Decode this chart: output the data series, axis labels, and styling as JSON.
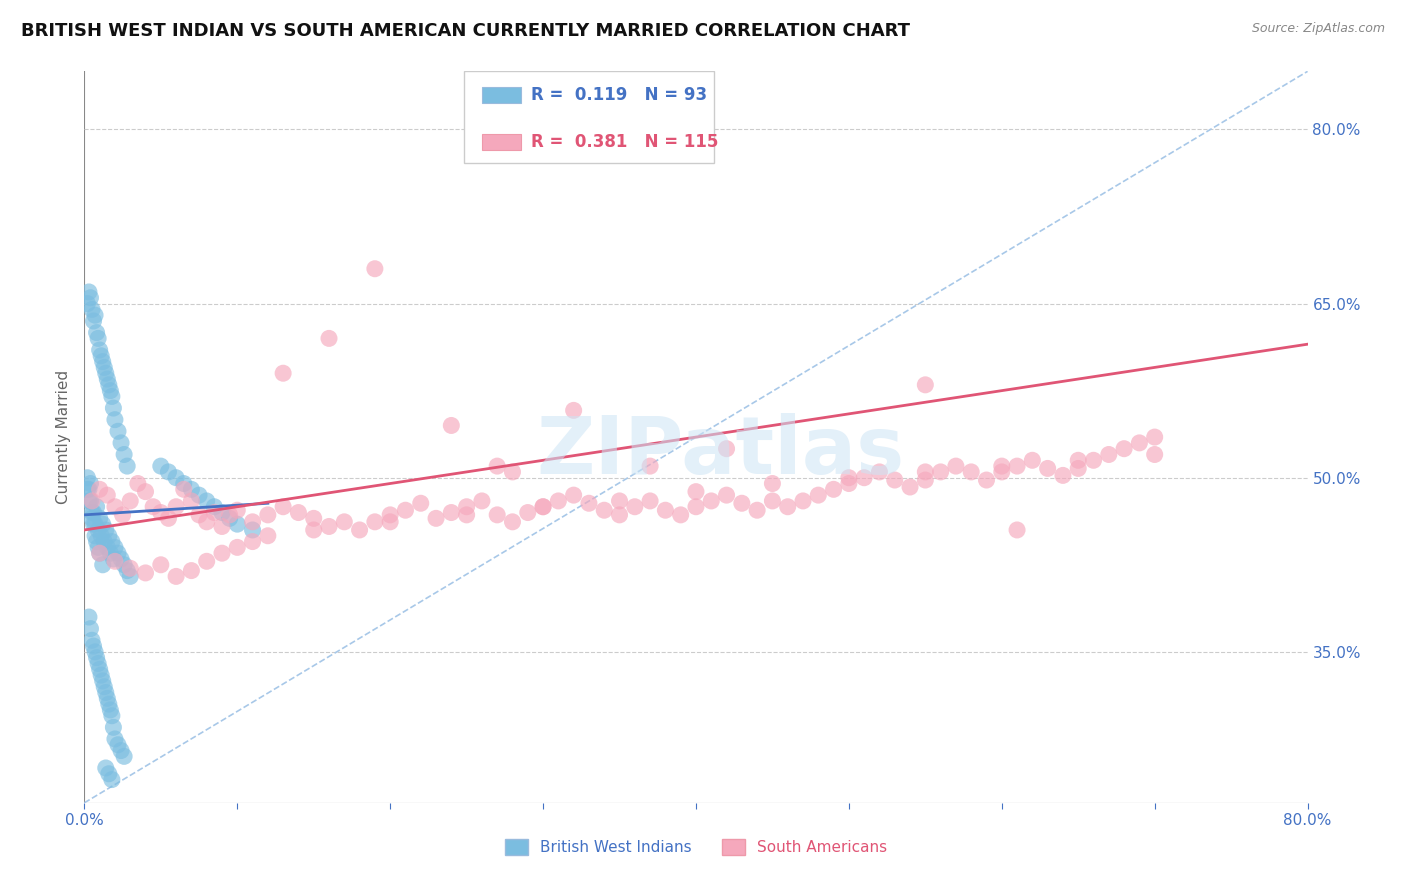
{
  "title": "BRITISH WEST INDIAN VS SOUTH AMERICAN CURRENTLY MARRIED CORRELATION CHART",
  "source_text": "Source: ZipAtlas.com",
  "ylabel": "Currently Married",
  "watermark": "ZIPatlas",
  "xlim": [
    0.0,
    0.8
  ],
  "ylim": [
    0.22,
    0.85
  ],
  "yticks": [
    0.35,
    0.5,
    0.65,
    0.8
  ],
  "ytick_labels": [
    "35.0%",
    "50.0%",
    "65.0%",
    "80.0%"
  ],
  "xticks": [
    0.0,
    0.1,
    0.2,
    0.3,
    0.4,
    0.5,
    0.6,
    0.7,
    0.8
  ],
  "xtick_labels": [
    "0.0%",
    "",
    "",
    "",
    "",
    "",
    "",
    "",
    "80.0%"
  ],
  "blue_R": 0.119,
  "blue_N": 93,
  "pink_R": 0.381,
  "pink_N": 115,
  "blue_color": "#7bbde0",
  "pink_color": "#f5a8bc",
  "blue_line_color": "#4472c4",
  "pink_line_color": "#e05575",
  "axis_color": "#4472c4",
  "title_fontsize": 13,
  "tick_fontsize": 11,
  "legend_fontsize": 13,
  "blue_reg_line": {
    "x0": 0.0,
    "x1": 0.12,
    "y0": 0.468,
    "y1": 0.478
  },
  "pink_reg_line": {
    "x0": 0.0,
    "x1": 0.8,
    "y0": 0.455,
    "y1": 0.615
  },
  "diag_line": {
    "x0": 0.0,
    "x1": 0.8,
    "y0": 0.22,
    "y1": 0.85
  },
  "blue_scatter_x": [
    0.002,
    0.003,
    0.004,
    0.005,
    0.006,
    0.007,
    0.008,
    0.009,
    0.01,
    0.011,
    0.012,
    0.013,
    0.014,
    0.015,
    0.016,
    0.017,
    0.018,
    0.019,
    0.02,
    0.022,
    0.024,
    0.026,
    0.028,
    0.03,
    0.002,
    0.003,
    0.004,
    0.005,
    0.006,
    0.007,
    0.008,
    0.009,
    0.01,
    0.011,
    0.012,
    0.013,
    0.014,
    0.015,
    0.016,
    0.017,
    0.018,
    0.019,
    0.02,
    0.022,
    0.024,
    0.026,
    0.028,
    0.003,
    0.004,
    0.005,
    0.006,
    0.007,
    0.008,
    0.009,
    0.01,
    0.011,
    0.012,
    0.013,
    0.014,
    0.015,
    0.016,
    0.017,
    0.018,
    0.019,
    0.02,
    0.022,
    0.024,
    0.026,
    0.05,
    0.055,
    0.06,
    0.065,
    0.07,
    0.075,
    0.08,
    0.085,
    0.09,
    0.095,
    0.1,
    0.11,
    0.002,
    0.003,
    0.004,
    0.005,
    0.006,
    0.007,
    0.008,
    0.009,
    0.01,
    0.012,
    0.014,
    0.016,
    0.018
  ],
  "blue_scatter_y": [
    0.49,
    0.48,
    0.495,
    0.465,
    0.47,
    0.46,
    0.475,
    0.455,
    0.465,
    0.45,
    0.46,
    0.445,
    0.455,
    0.44,
    0.45,
    0.435,
    0.445,
    0.43,
    0.44,
    0.435,
    0.43,
    0.425,
    0.42,
    0.415,
    0.65,
    0.66,
    0.655,
    0.645,
    0.635,
    0.64,
    0.625,
    0.62,
    0.61,
    0.605,
    0.6,
    0.595,
    0.59,
    0.585,
    0.58,
    0.575,
    0.57,
    0.56,
    0.55,
    0.54,
    0.53,
    0.52,
    0.51,
    0.38,
    0.37,
    0.36,
    0.355,
    0.35,
    0.345,
    0.34,
    0.335,
    0.33,
    0.325,
    0.32,
    0.315,
    0.31,
    0.305,
    0.3,
    0.295,
    0.285,
    0.275,
    0.27,
    0.265,
    0.26,
    0.51,
    0.505,
    0.5,
    0.495,
    0.49,
    0.485,
    0.48,
    0.475,
    0.47,
    0.465,
    0.46,
    0.455,
    0.5,
    0.49,
    0.48,
    0.47,
    0.46,
    0.45,
    0.445,
    0.44,
    0.435,
    0.425,
    0.25,
    0.245,
    0.24
  ],
  "pink_scatter_x": [
    0.005,
    0.01,
    0.015,
    0.02,
    0.025,
    0.03,
    0.035,
    0.04,
    0.045,
    0.05,
    0.055,
    0.06,
    0.065,
    0.07,
    0.075,
    0.08,
    0.085,
    0.09,
    0.095,
    0.1,
    0.11,
    0.12,
    0.13,
    0.14,
    0.15,
    0.16,
    0.17,
    0.18,
    0.19,
    0.2,
    0.21,
    0.22,
    0.23,
    0.24,
    0.25,
    0.26,
    0.27,
    0.28,
    0.29,
    0.3,
    0.31,
    0.32,
    0.33,
    0.34,
    0.35,
    0.36,
    0.37,
    0.38,
    0.39,
    0.4,
    0.41,
    0.42,
    0.43,
    0.44,
    0.45,
    0.46,
    0.47,
    0.48,
    0.49,
    0.5,
    0.51,
    0.52,
    0.53,
    0.54,
    0.55,
    0.56,
    0.57,
    0.58,
    0.59,
    0.6,
    0.61,
    0.62,
    0.63,
    0.64,
    0.65,
    0.66,
    0.67,
    0.68,
    0.69,
    0.7,
    0.01,
    0.02,
    0.03,
    0.04,
    0.05,
    0.06,
    0.07,
    0.08,
    0.09,
    0.1,
    0.11,
    0.12,
    0.15,
    0.2,
    0.25,
    0.3,
    0.35,
    0.4,
    0.45,
    0.5,
    0.55,
    0.6,
    0.65,
    0.7,
    0.55,
    0.37,
    0.42,
    0.28,
    0.19,
    0.16,
    0.13,
    0.27,
    0.32,
    0.24,
    0.61
  ],
  "pink_scatter_y": [
    0.48,
    0.49,
    0.485,
    0.475,
    0.468,
    0.48,
    0.495,
    0.488,
    0.475,
    0.47,
    0.465,
    0.475,
    0.49,
    0.48,
    0.468,
    0.462,
    0.47,
    0.458,
    0.468,
    0.472,
    0.462,
    0.468,
    0.475,
    0.47,
    0.465,
    0.458,
    0.462,
    0.455,
    0.462,
    0.468,
    0.472,
    0.478,
    0.465,
    0.47,
    0.475,
    0.48,
    0.468,
    0.462,
    0.47,
    0.475,
    0.48,
    0.485,
    0.478,
    0.472,
    0.468,
    0.475,
    0.48,
    0.472,
    0.468,
    0.475,
    0.48,
    0.485,
    0.478,
    0.472,
    0.48,
    0.475,
    0.48,
    0.485,
    0.49,
    0.495,
    0.5,
    0.505,
    0.498,
    0.492,
    0.498,
    0.505,
    0.51,
    0.505,
    0.498,
    0.505,
    0.51,
    0.515,
    0.508,
    0.502,
    0.508,
    0.515,
    0.52,
    0.525,
    0.53,
    0.535,
    0.435,
    0.428,
    0.422,
    0.418,
    0.425,
    0.415,
    0.42,
    0.428,
    0.435,
    0.44,
    0.445,
    0.45,
    0.455,
    0.462,
    0.468,
    0.475,
    0.48,
    0.488,
    0.495,
    0.5,
    0.505,
    0.51,
    0.515,
    0.52,
    0.58,
    0.51,
    0.525,
    0.505,
    0.68,
    0.62,
    0.59,
    0.51,
    0.558,
    0.545,
    0.455
  ]
}
